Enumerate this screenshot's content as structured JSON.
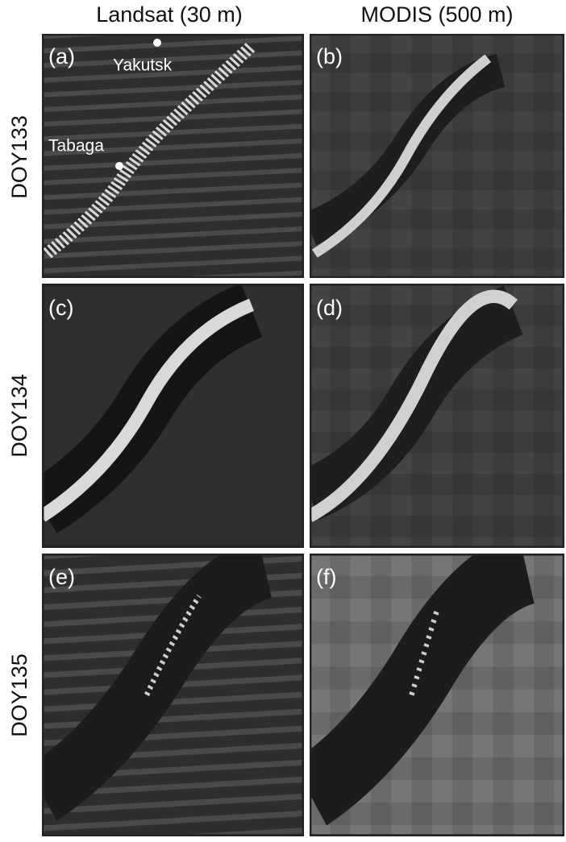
{
  "columns": [
    "Landsat (30 m)",
    "MODIS (500 m)"
  ],
  "rows": [
    "DOY133",
    "DOY134",
    "DOY135"
  ],
  "panels": [
    "(a)",
    "(b)",
    "(c)",
    "(d)",
    "(e)",
    "(f)"
  ],
  "places": [
    "Yakutsk",
    "Tabaga"
  ]
}
